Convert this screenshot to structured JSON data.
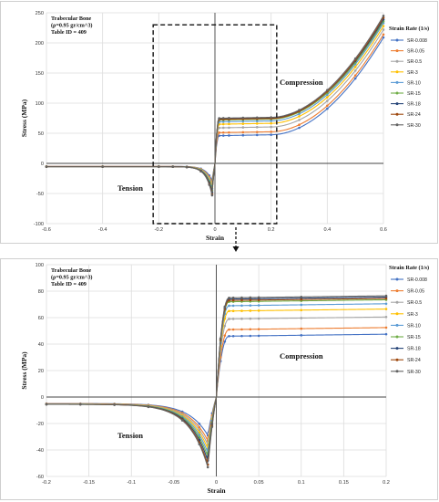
{
  "chart_data": [
    {
      "type": "line",
      "xlabel": "Strain",
      "ylabel": "Stress (MPa)",
      "xlim": [
        -0.6,
        0.6
      ],
      "ylim": [
        -100,
        250
      ],
      "x_ticks": [
        "-0.6",
        "-0.4",
        "-0.2",
        "0",
        "0.2",
        "0.4",
        "0.6"
      ],
      "y_ticks": [
        "-100",
        "-50",
        "0",
        "50",
        "100",
        "150",
        "200",
        "250"
      ],
      "grid": true,
      "info_lines": [
        "Trabecular Bone",
        "(ρ=0.95 gr/cm^3)",
        "Table ID = 409"
      ],
      "annotations": {
        "tension": "Tension",
        "compression": "Compression"
      },
      "legend_title": "Strain Rate (1/s)",
      "legend_position": "right",
      "zoom_box": {
        "x": [
          -0.22,
          0.22
        ],
        "y": [
          -100,
          230
        ]
      },
      "series": [
        {
          "name": "SR-0.008",
          "color": "#4472c4",
          "plateau": 46,
          "peak_tension": -29,
          "end_value": 209
        },
        {
          "name": "SR-0.05",
          "color": "#ed7d31",
          "plateau": 51,
          "peak_tension": -33,
          "end_value": 214
        },
        {
          "name": "SR-0.5",
          "color": "#a5a5a5",
          "plateau": 59,
          "peak_tension": -36,
          "end_value": 222
        },
        {
          "name": "SR-3",
          "color": "#ffc000",
          "plateau": 65,
          "peak_tension": -39,
          "end_value": 228
        },
        {
          "name": "SR-10",
          "color": "#5b9bd5",
          "plateau": 69,
          "peak_tension": -42,
          "end_value": 233
        },
        {
          "name": "SR-15",
          "color": "#70ad47",
          "plateau": 72,
          "peak_tension": -45,
          "end_value": 236
        },
        {
          "name": "SR-18",
          "color": "#264478",
          "plateau": 74,
          "peak_tension": -48,
          "end_value": 239
        },
        {
          "name": "SR-24",
          "color": "#9e480e",
          "plateau": 73,
          "peak_tension": -51,
          "end_value": 242
        },
        {
          "name": "SR-30",
          "color": "#636363",
          "plateau": 75,
          "peak_tension": -53,
          "end_value": 245
        }
      ]
    },
    {
      "type": "line",
      "xlabel": "Strain",
      "ylabel": "Stress (MPa)",
      "xlim": [
        -0.2,
        0.2
      ],
      "ylim": [
        -60,
        100
      ],
      "x_ticks": [
        "-0.2",
        "-0.15",
        "-0.1",
        "-0.05",
        "0",
        "0.05",
        "0.1",
        "0.15",
        "0.2"
      ],
      "y_ticks": [
        "-60",
        "-40",
        "-20",
        "0",
        "20",
        "40",
        "60",
        "80",
        "100"
      ],
      "grid": true,
      "info_lines": [
        "Trabecular Bone",
        "(ρ=0.95 gr/cm^3)",
        "Table ID = 409"
      ],
      "annotations": {
        "tension": "Tension",
        "compression": "Compression"
      },
      "legend_title": "Strain Rate (1/s)",
      "legend_position": "right",
      "series": [
        {
          "name": "SR-0.008",
          "color": "#4472c4",
          "plateau": 46,
          "peak_tension": -29,
          "end_value": 49
        },
        {
          "name": "SR-0.05",
          "color": "#ed7d31",
          "plateau": 51,
          "peak_tension": -33,
          "end_value": 54
        },
        {
          "name": "SR-0.5",
          "color": "#a5a5a5",
          "plateau": 59,
          "peak_tension": -36,
          "end_value": 62
        },
        {
          "name": "SR-3",
          "color": "#ffc000",
          "plateau": 65,
          "peak_tension": -39,
          "end_value": 68
        },
        {
          "name": "SR-10",
          "color": "#5b9bd5",
          "plateau": 69,
          "peak_tension": -42,
          "end_value": 72
        },
        {
          "name": "SR-15",
          "color": "#70ad47",
          "plateau": 72,
          "peak_tension": -45,
          "end_value": 75
        },
        {
          "name": "SR-18",
          "color": "#264478",
          "plateau": 74,
          "peak_tension": -48,
          "end_value": 77
        },
        {
          "name": "SR-24",
          "color": "#9e480e",
          "plateau": 73,
          "peak_tension": -51,
          "end_value": 77
        },
        {
          "name": "SR-30",
          "color": "#636363",
          "plateau": 75,
          "peak_tension": -53,
          "end_value": 78
        }
      ]
    }
  ]
}
